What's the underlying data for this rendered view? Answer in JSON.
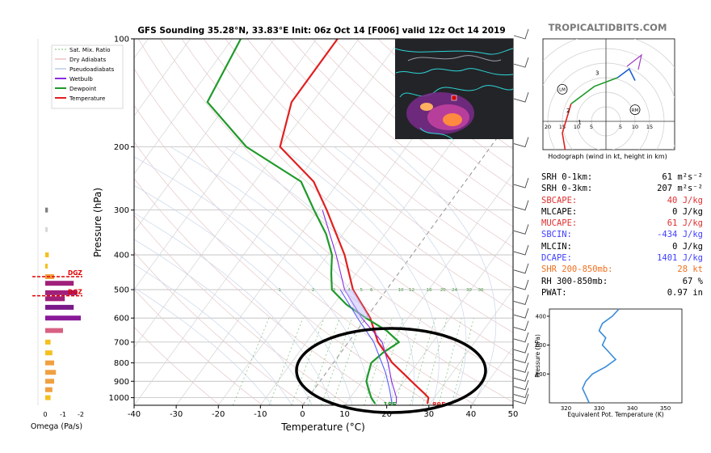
{
  "chart_data": [
    {
      "type": "skew-t sounding",
      "title": "GFS Sounding 35.28°N, 33.83°E Init: 06z Oct 14 [F006] valid 12z Oct 14 2019",
      "xlabel": "Temperature (°C)",
      "ylabel": "Pressure (hPa)",
      "xlim": [
        -40,
        50
      ],
      "ylim": [
        1050,
        100
      ],
      "yscale": "log",
      "x_ticks": [
        -40,
        -30,
        -20,
        -10,
        0,
        10,
        20,
        30,
        40,
        50
      ],
      "y_ticks": [
        100,
        200,
        300,
        400,
        500,
        600,
        700,
        800,
        900,
        1000
      ],
      "legend": [
        "Sat. Mix. Ratio",
        "Dry Adiabats",
        "Pseudoadiabats",
        "Wetbulb",
        "Dewpoint",
        "Temperature"
      ],
      "legend_position": "left",
      "series": [
        {
          "name": "Temperature",
          "color": "#e02020",
          "points": [
            [
              1040,
              29.4
            ],
            [
              1000,
              28.6
            ],
            [
              975,
              27
            ],
            [
              925,
              23.5
            ],
            [
              850,
              18
            ],
            [
              800,
              14
            ],
            [
              700,
              7
            ],
            [
              600,
              1
            ],
            [
              500,
              -8
            ],
            [
              400,
              -16
            ],
            [
              300,
              -28
            ],
            [
              250,
              -36
            ],
            [
              200,
              -50
            ],
            [
              150,
              -55
            ],
            [
              100,
              -55
            ]
          ]
        },
        {
          "name": "Dewpoint",
          "color": "#1f9a2a",
          "points": [
            [
              1040,
              17
            ],
            [
              1000,
              15
            ],
            [
              950,
              13
            ],
            [
              900,
              11
            ],
            [
              850,
              10
            ],
            [
              800,
              9
            ],
            [
              750,
              10
            ],
            [
              700,
              12
            ],
            [
              650,
              7
            ],
            [
              600,
              0
            ],
            [
              550,
              -7
            ],
            [
              500,
              -13
            ],
            [
              450,
              -16
            ],
            [
              400,
              -19
            ],
            [
              350,
              -24
            ],
            [
              300,
              -31
            ],
            [
              250,
              -39
            ],
            [
              200,
              -58
            ],
            [
              150,
              -75
            ],
            [
              100,
              -78
            ]
          ]
        },
        {
          "name": "Wetbulb",
          "color": "#8a2be2",
          "points": [
            [
              1040,
              22
            ],
            [
              1000,
              21
            ],
            [
              900,
              17
            ],
            [
              800,
              13
            ],
            [
              700,
              8
            ],
            [
              600,
              -1
            ],
            [
              500,
              -10
            ],
            [
              400,
              -18
            ],
            [
              300,
              -29
            ]
          ]
        },
        {
          "name": "Pseudoadiabat parcel",
          "color": "#5a5aff",
          "points": [
            [
              1040,
              21
            ],
            [
              950,
              18
            ],
            [
              850,
              14
            ],
            [
              700,
              6
            ],
            [
              600,
              -2
            ],
            [
              500,
              -11
            ]
          ]
        }
      ],
      "annotations": [
        "18F",
        "89F"
      ],
      "mixing_ratio_labels": [
        "1",
        "2",
        "3",
        "4",
        "5",
        "6",
        "10",
        "12",
        "16",
        "20",
        "24",
        "30",
        "36"
      ]
    },
    {
      "type": "hodograph",
      "title": "Hodograph (wind in kt, height in km)",
      "ring_labels": [
        "20",
        "15",
        "10",
        "5",
        "5",
        "10",
        "15"
      ],
      "markers": [
        "3",
        "2",
        "1",
        "LM",
        "RM"
      ],
      "path": [
        [
          -8,
          -22
        ],
        [
          -14,
          -10
        ],
        [
          -15,
          -4
        ],
        [
          -12,
          6
        ],
        [
          -4,
          12
        ],
        [
          4,
          15
        ],
        [
          8,
          18
        ],
        [
          10,
          14
        ]
      ]
    },
    {
      "type": "line",
      "title": "",
      "xlabel": "Equivalent Pot. Temperature (K)",
      "ylabel": "Pressure (hPa)",
      "xlim": [
        315,
        355
      ],
      "ylim": [
        1000,
        350
      ],
      "x_ticks": [
        320,
        330,
        340,
        350
      ],
      "y_ticks": [
        400,
        600,
        800
      ],
      "series": [
        {
          "color": "#3a8cd8",
          "points": [
            [
              350,
              336
            ],
            [
              400,
              334
            ],
            [
              450,
              331
            ],
            [
              500,
              330
            ],
            [
              550,
              332
            ],
            [
              600,
              331
            ],
            [
              650,
              333
            ],
            [
              700,
              335
            ],
            [
              750,
              332
            ],
            [
              800,
              328
            ],
            [
              850,
              326
            ],
            [
              900,
              325
            ],
            [
              950,
              326
            ],
            [
              1000,
              327
            ]
          ]
        }
      ]
    },
    {
      "type": "bar",
      "xlabel": "Omega (Pa/s)",
      "x_ticks": [
        "0",
        "-1",
        "-2"
      ],
      "label_markers": [
        "DGZ",
        "DGZ"
      ],
      "bars": [
        {
          "p": 300,
          "v": -0.15,
          "color": "#808080"
        },
        {
          "p": 340,
          "v": -0.05,
          "color": "#d8d8d8"
        },
        {
          "p": 400,
          "v": -0.2,
          "color": "#f4c020"
        },
        {
          "p": 430,
          "v": -0.1,
          "color": "#f4c020"
        },
        {
          "p": 460,
          "v": -0.5,
          "color": "#f0a040"
        },
        {
          "p": 480,
          "v": -1.6,
          "color": "#a0207a"
        },
        {
          "p": 510,
          "v": -1.8,
          "color": "#a0207a"
        },
        {
          "p": 530,
          "v": -1.1,
          "color": "#a0207a"
        },
        {
          "p": 560,
          "v": -1.6,
          "color": "#7a1a8a"
        },
        {
          "p": 600,
          "v": -2.0,
          "color": "#8a1a9a"
        },
        {
          "p": 650,
          "v": -1.0,
          "color": "#d86080"
        },
        {
          "p": 700,
          "v": -0.3,
          "color": "#f4c020"
        },
        {
          "p": 750,
          "v": -0.4,
          "color": "#f4c020"
        },
        {
          "p": 800,
          "v": -0.5,
          "color": "#f0a040"
        },
        {
          "p": 850,
          "v": -0.6,
          "color": "#f0a040"
        },
        {
          "p": 900,
          "v": -0.5,
          "color": "#f0a040"
        },
        {
          "p": 950,
          "v": -0.4,
          "color": "#f0a040"
        },
        {
          "p": 1000,
          "v": -0.3,
          "color": "#f4c020"
        }
      ]
    }
  ],
  "branding": "TROPICALTIDBITS.COM",
  "stats": [
    {
      "label": "SRH 0-1km:",
      "value": "61 m²s⁻²",
      "color": "#000000"
    },
    {
      "label": "SRH 0-3km:",
      "value": "207 m²s⁻²",
      "color": "#000000"
    },
    {
      "label": "SBCAPE:",
      "value": "40 J/kg",
      "color": "#e03030"
    },
    {
      "label": "MLCAPE:",
      "value": "0 J/kg",
      "color": "#000000"
    },
    {
      "label": "MUCAPE:",
      "value": "61 J/kg",
      "color": "#e03030"
    },
    {
      "label": "SBCIN:",
      "value": "-434 J/kg",
      "color": "#4040ff"
    },
    {
      "label": "MLCIN:",
      "value": "0 J/kg",
      "color": "#000000"
    },
    {
      "label": "DCAPE:",
      "value": "1401 J/kg",
      "color": "#4040ff"
    },
    {
      "label": "SHR 200-850mb:",
      "value": "28 kt",
      "color": "#f07020"
    },
    {
      "label": "RH 300-850mb:",
      "value": "67 %",
      "color": "#000000"
    },
    {
      "label": "PWAT:",
      "value": "0.97 in",
      "color": "#000000"
    }
  ]
}
